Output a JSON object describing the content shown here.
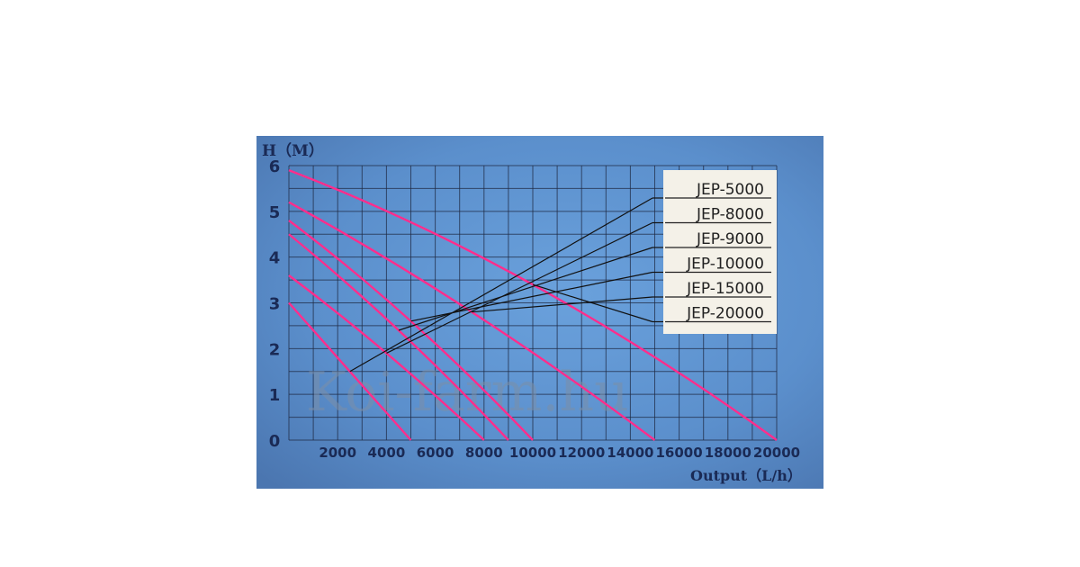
{
  "chart_data": {
    "type": "line",
    "ylabel": "H（M）",
    "xlabel": "Output（L/h）",
    "xlim": [
      0,
      20000
    ],
    "ylim": [
      0,
      6
    ],
    "xticks": [
      "2000",
      "4000",
      "6000",
      "8000",
      "10000",
      "12000",
      "14000",
      "16000",
      "18000",
      "20000"
    ],
    "yticks": [
      "0",
      "1",
      "2",
      "3",
      "4",
      "5",
      "6"
    ],
    "grid": true,
    "legend_position": "top-right",
    "series": [
      {
        "name": "JEP-5000",
        "x": [
          0,
          2500,
          5000
        ],
        "y": [
          3.0,
          1.5,
          0
        ]
      },
      {
        "name": "JEP-8000",
        "x": [
          0,
          4000,
          8000
        ],
        "y": [
          3.6,
          1.9,
          0
        ]
      },
      {
        "name": "JEP-9000",
        "x": [
          0,
          4500,
          9000
        ],
        "y": [
          4.5,
          2.4,
          0
        ]
      },
      {
        "name": "JEP-10000",
        "x": [
          0,
          5000,
          10000
        ],
        "y": [
          4.8,
          2.6,
          0
        ]
      },
      {
        "name": "JEP-15000",
        "x": [
          0,
          7500,
          15000
        ],
        "y": [
          5.2,
          2.8,
          0
        ]
      },
      {
        "name": "JEP-20000",
        "x": [
          0,
          10000,
          20000
        ],
        "y": [
          5.9,
          3.4,
          0
        ]
      }
    ],
    "watermark": "Koi-farm.hu",
    "colors": {
      "curve": "#ff2d8c",
      "background": "#5d8fce",
      "legend_bg": "#f4f1e8"
    }
  }
}
